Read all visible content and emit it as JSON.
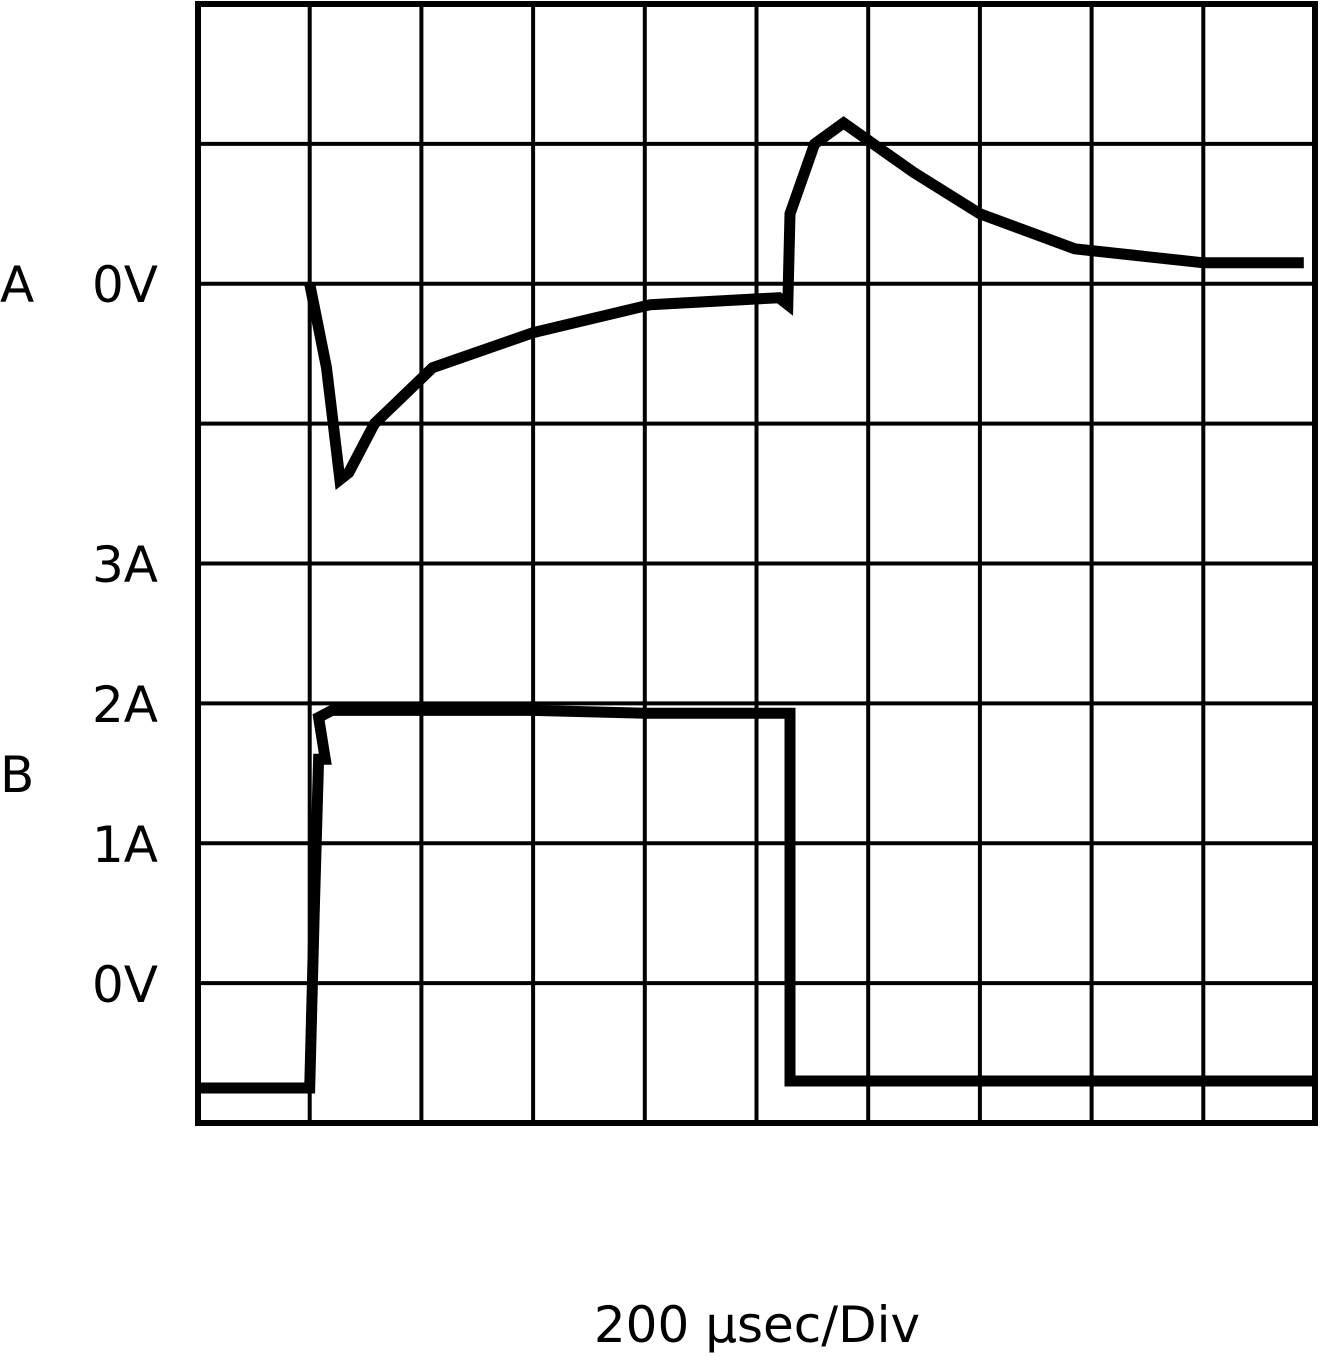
{
  "chart_data": {
    "type": "line",
    "title": "",
    "xlabel": "200 µsec/Div",
    "grid": true,
    "grid_divisions": {
      "x": 10,
      "y": 8
    },
    "x_range_divisions": [
      0,
      10
    ],
    "channel_labels": [
      {
        "id": "A",
        "text": "A",
        "ref_label": "0V",
        "ref_division": 6
      },
      {
        "id": "B",
        "text": "B"
      }
    ],
    "y_tick_labels": [
      {
        "text": "3A",
        "division": 4
      },
      {
        "text": "2A",
        "division": 3
      },
      {
        "text": "1A",
        "division": 2
      },
      {
        "text": "0V",
        "division": 1
      }
    ],
    "series": [
      {
        "id": "A",
        "x": [
          1.0,
          1.15,
          1.27,
          1.35,
          1.58,
          2.1,
          3.0,
          4.05,
          5.2,
          5.28,
          5.3,
          5.52,
          5.78,
          6.4,
          7.0,
          7.85,
          9.0,
          9.9
        ],
        "y": [
          6.0,
          5.4,
          4.6,
          4.65,
          5.0,
          5.4,
          5.65,
          5.85,
          5.9,
          5.85,
          6.5,
          7.0,
          7.15,
          6.8,
          6.5,
          6.25,
          6.15,
          6.15
        ]
      },
      {
        "id": "B",
        "x": [
          0.0,
          1.0,
          1.04,
          1.08,
          1.14,
          1.08,
          1.2,
          2.0,
          3.0,
          4.0,
          5.3,
          5.3,
          6.5,
          10.0
        ],
        "y": [
          0.25,
          0.25,
          1.5,
          2.6,
          2.6,
          2.9,
          2.95,
          2.95,
          2.95,
          2.93,
          2.93,
          0.3,
          0.3,
          0.3
        ]
      }
    ]
  }
}
